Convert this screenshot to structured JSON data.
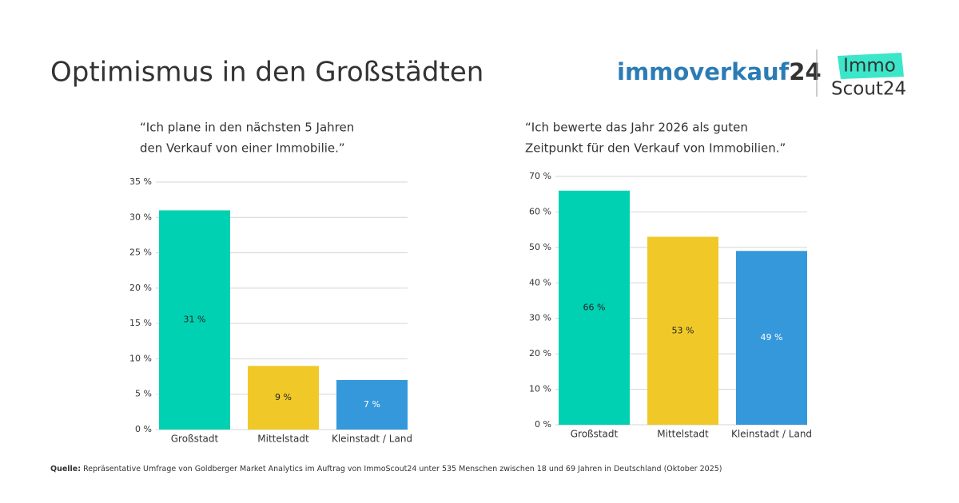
{
  "header": {
    "title": "Optimismus in den Großstädten",
    "logo_immoverkauf": {
      "word": "immoverkauf",
      "number": "24"
    },
    "logo_immoscout": {
      "top": "Immo",
      "bottom": "Scout24"
    }
  },
  "chart_data": [
    {
      "type": "bar",
      "subtitle": [
        "“Ich plane in den nächsten 5 Jahren",
        "den Verkauf von einer Immobilie.”"
      ],
      "categories": [
        "Großstadt",
        "Mittelstadt",
        "Kleinstadt / Land"
      ],
      "values": [
        31,
        9,
        7
      ],
      "value_labels": [
        "31 %",
        "9 %",
        "7 %"
      ],
      "colors": [
        "#00d1b2",
        "#f0c929",
        "#3498db"
      ],
      "value_label_colors": [
        "#222222",
        "#222222",
        "#ffffff"
      ],
      "ylim": [
        0,
        35
      ],
      "yticks": [
        {
          "value": 0,
          "label": "0 %"
        },
        {
          "value": 5,
          "label": "5 %"
        },
        {
          "value": 10,
          "label": "10 %"
        },
        {
          "value": 15,
          "label": "15 %"
        },
        {
          "value": 20,
          "label": "20 %"
        },
        {
          "value": 25,
          "label": "25 %"
        },
        {
          "value": 30,
          "label": "30 %"
        },
        {
          "value": 35,
          "label": "35 %"
        }
      ],
      "grid": true
    },
    {
      "type": "bar",
      "subtitle": [
        "“Ich bewerte  das Jahr 2026 als guten",
        "Zeitpunkt für den Verkauf von Immobilien.”"
      ],
      "categories": [
        "Großstadt",
        "Mittelstadt",
        "Kleinstadt / Land"
      ],
      "values": [
        66,
        53,
        49
      ],
      "value_labels": [
        "66 %",
        "53 %",
        "49 %"
      ],
      "colors": [
        "#00d1b2",
        "#f0c929",
        "#3498db"
      ],
      "value_label_colors": [
        "#222222",
        "#222222",
        "#ffffff"
      ],
      "ylim": [
        0,
        70
      ],
      "yticks": [
        {
          "value": 0,
          "label": "0 %"
        },
        {
          "value": 10,
          "label": "10 %"
        },
        {
          "value": 20,
          "label": "20 %"
        },
        {
          "value": 30,
          "label": "30 %"
        },
        {
          "value": 40,
          "label": "40 %"
        },
        {
          "value": 50,
          "label": "50 %"
        },
        {
          "value": 60,
          "label": "60 %"
        },
        {
          "value": 70,
          "label": "70 %"
        }
      ],
      "grid": true
    }
  ],
  "source": {
    "label": "Quelle:",
    "text": " Repräsentative Umfrage von Goldberger Market Analytics im Auftrag von ImmoScout24 unter 535 Menschen zwischen 18 und 69 Jahren in Deutschland (Oktober 2025)"
  }
}
